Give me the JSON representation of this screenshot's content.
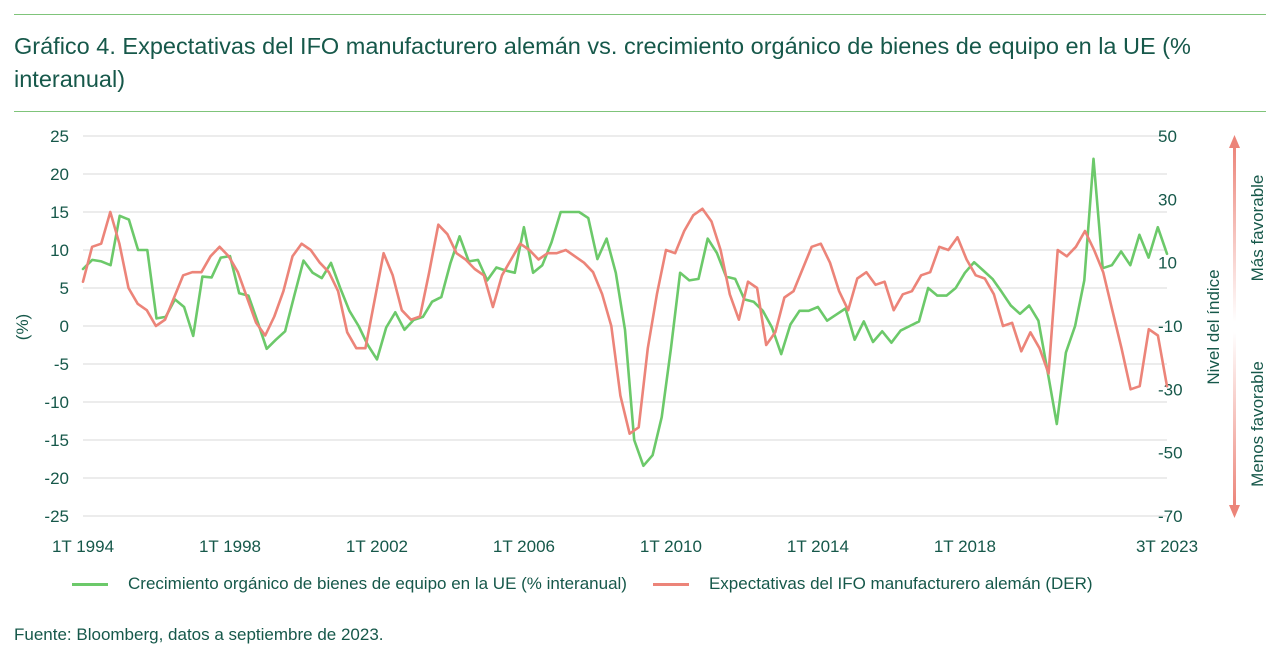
{
  "header": {
    "title": "Gráfico 4. Expectativas del IFO manufacturero alemán vs. crecimiento orgánico de bienes de equipo en la UE (% interanual)"
  },
  "footer": {
    "source": "Fuente: Bloomberg, datos a septiembre de 2023."
  },
  "colors": {
    "green": "#6cc96a",
    "red": "#ec8479",
    "text": "#16584a",
    "grid": "#d9d9d9",
    "rule": "#7fc47a"
  },
  "chart_data": {
    "type": "line",
    "title": "Gráfico 4. Expectativas del IFO manufacturero alemán vs. crecimiento orgánico de bienes de equipo en la UE (% interanual)",
    "ylabel": "(%)",
    "y2label": "Nivel del índice",
    "ylim": [
      -25,
      25
    ],
    "y_ticks": [
      "25",
      "20",
      "15",
      "10",
      "5",
      "0",
      "-5",
      "-10",
      "-15",
      "-20",
      "-25"
    ],
    "y2lim": [
      -70,
      50
    ],
    "y2_ticks": [
      "50",
      "30",
      "10",
      "-10",
      "-30",
      "-50",
      "-70"
    ],
    "x_start": "1T 1994",
    "x_end": "3T 2023",
    "x_ticks": [
      "1T 1994",
      "1T 1998",
      "1T 2002",
      "1T 2006",
      "1T 2010",
      "1T 2014",
      "1T 2018",
      "3T 2023"
    ],
    "annotation_up": "Más favorable",
    "annotation_down": "Menos favorable",
    "grid": "horizontal",
    "legend_position": "bottom",
    "series": [
      {
        "name": "Crecimiento orgánico de bienes de equipo en la UE (% interanual)",
        "axis": "left",
        "color": "#6cc96a",
        "values": [
          7.5,
          8.7,
          8.5,
          8.0,
          14.5,
          14.0,
          10.0,
          10.0,
          1.0,
          1.2,
          3.5,
          2.5,
          -1.3,
          6.5,
          6.4,
          9.0,
          9.2,
          4.3,
          4.0,
          0.6,
          -3.0,
          -1.8,
          -0.7,
          4.0,
          8.6,
          7.0,
          6.3,
          8.3,
          5.0,
          2.0,
          0.0,
          -2.5,
          -4.4,
          -0.2,
          1.8,
          -0.5,
          0.8,
          1.2,
          3.2,
          3.8,
          8.3,
          11.8,
          8.5,
          8.7,
          6.0,
          7.7,
          7.3,
          7.0,
          13.0,
          7.0,
          8.0,
          11.0,
          15.0,
          15.0,
          15.0,
          14.2,
          8.8,
          11.5,
          7.0,
          -0.5,
          -15.0,
          -18.4,
          -17.0,
          -12.0,
          -3.0,
          7.0,
          6.0,
          6.2,
          11.5,
          9.6,
          6.5,
          6.2,
          3.5,
          3.2,
          2.0,
          -0.2,
          -3.7,
          0.2,
          2.0,
          2.0,
          2.5,
          0.7,
          1.5,
          2.3,
          -1.8,
          0.6,
          -2.1,
          -0.7,
          -2.2,
          -0.6,
          0.0,
          0.6,
          5.0,
          4.0,
          4.0,
          5.0,
          7.0,
          8.4,
          7.3,
          6.2,
          4.5,
          2.7,
          1.6,
          2.7,
          0.7,
          -6.0,
          -12.9,
          -3.5,
          0.0,
          6.0,
          22.0,
          7.6,
          8.0,
          9.8,
          8.0,
          12.0,
          9.0,
          13.0,
          9.5
        ]
      },
      {
        "name": "Expectativas del IFO manufacturero alemán (DER)",
        "axis": "right",
        "color": "#ec8479",
        "values": [
          4,
          15,
          16,
          26,
          16,
          2,
          -3,
          -5,
          -10,
          -8,
          -1,
          6,
          7,
          7,
          12,
          15,
          12,
          7,
          -1,
          -9,
          -13,
          -7,
          1,
          12,
          16,
          14,
          10,
          7,
          1,
          -12,
          -17,
          -17,
          -2,
          13,
          6,
          -5,
          -8,
          -7,
          7,
          22,
          19,
          13,
          11,
          8,
          6,
          -4,
          6,
          11,
          16,
          14,
          11,
          13,
          13,
          14,
          12,
          10,
          7,
          0,
          -10,
          -32,
          -44,
          -42,
          -17,
          0,
          14,
          13,
          20,
          25,
          27,
          23,
          14,
          0,
          -8,
          4,
          2,
          -16,
          -12,
          -1,
          1,
          8,
          15,
          16,
          10,
          1,
          -5,
          5,
          7,
          3,
          4,
          -5,
          0,
          1,
          6,
          7,
          15,
          14,
          18,
          11,
          6,
          5,
          0,
          -10,
          -9,
          -18,
          -12,
          -17,
          -25,
          14,
          12,
          15,
          20,
          14,
          7,
          -5,
          -17,
          -30,
          -29,
          -11,
          -13,
          -29
        ]
      }
    ]
  }
}
